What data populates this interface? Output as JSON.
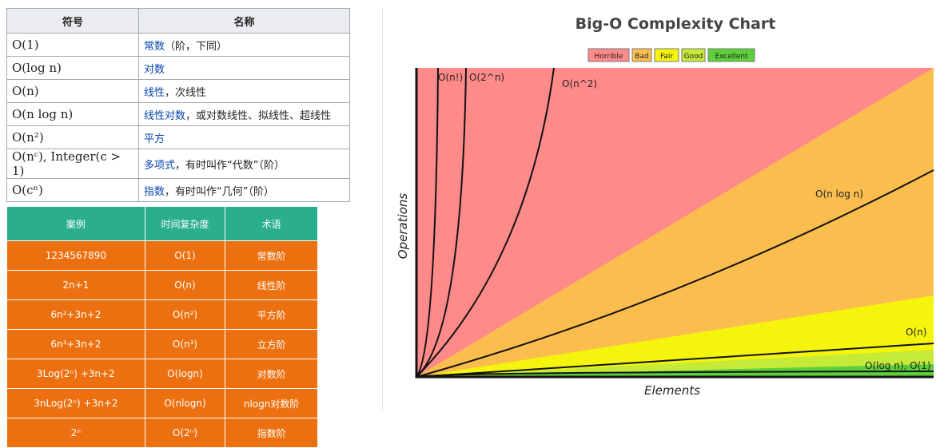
{
  "left_table": {
    "headers": [
      "符号",
      "名称"
    ],
    "rows": [
      {
        "notation": "O(1)",
        "name_link": "常数",
        "name_rest": "（阶，下同）"
      },
      {
        "notation": "O(log n)",
        "name_link": "对数"
      },
      {
        "notation": "O(n)",
        "name_link": "线性",
        "name_rest": "，次线性"
      },
      {
        "notation": "O(n log n)",
        "name_link": "线性对数",
        "name_rest": "，或对数线性、拟线性、超线性"
      },
      {
        "notation": "O(n²)",
        "name_link": "平方"
      },
      {
        "notation": "O(nᶜ), Integer(c > 1)",
        "name_link": "多项式",
        "name_rest": "，有时叫作“代数”（阶）"
      },
      {
        "notation": "O(cⁿ)",
        "name_link": "指数",
        "name_rest": "，有时叫作“几何”（阶）"
      }
    ]
  },
  "example_table": {
    "headers": [
      "案例",
      "时间复杂度",
      "术语"
    ],
    "rows": [
      [
        "1234567890",
        "O(1)",
        "常数阶"
      ],
      [
        "2n+1",
        "O(n)",
        "线性阶"
      ],
      [
        "6n²+3n+2",
        "O(n²)",
        "平方阶"
      ],
      [
        "6n³+3n+2",
        "O(n³)",
        "立方阶"
      ],
      [
        "3Log(2ⁿ) +3n+2",
        "O(logn)",
        "对数阶"
      ],
      [
        "3nLog(2ⁿ) +3n+2",
        "O(nlogn)",
        "nlogn对数阶"
      ],
      [
        "2ⁿ",
        "O(2ⁿ)",
        "指数阶"
      ]
    ]
  },
  "chart": {
    "title": "Big-O Complexity Chart",
    "legend": [
      "Horrible",
      "Bad",
      "Fair",
      "Good",
      "Excellent"
    ],
    "y_label": "Operations",
    "x_label": "Elements",
    "curve_labels": [
      "O(n!)",
      "O(2^n)",
      "O(n^2)",
      "O(n log n)",
      "O(n)",
      "O(log n), O(1)"
    ]
  }
}
